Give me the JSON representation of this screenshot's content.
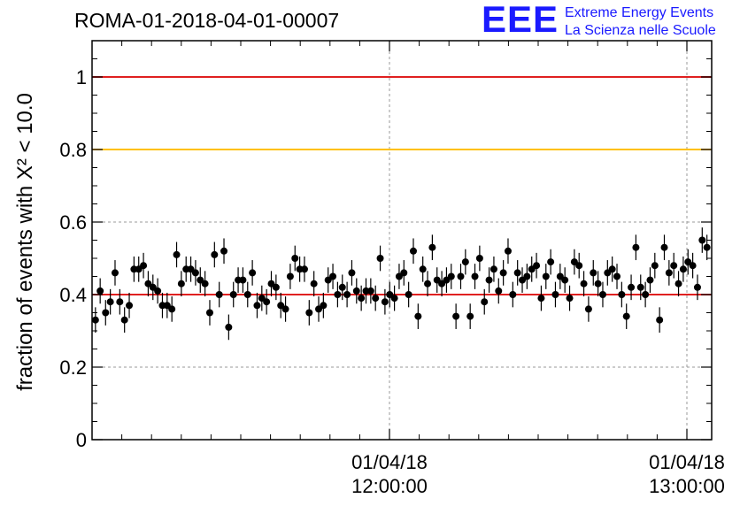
{
  "header": {
    "title": "ROMA-01-2018-04-01-00007",
    "logo_text": "EEE",
    "logo_line1": "Extreme Energy Events",
    "logo_line2": "La Scienza nelle Scuole",
    "logo_color": "#1a1aff"
  },
  "chart_data": {
    "type": "scatter",
    "title": "ROMA-01-2018-04-01-00007",
    "ylabel": "fraction of events with X² < 10.0",
    "xlabel": "",
    "ylim": [
      0,
      1.1
    ],
    "xlim": [
      "01/04/18 11:00:00",
      "01/04/18 13:05:00"
    ],
    "x_is_time": true,
    "y_ticks": [
      "0",
      "0.2",
      "0.4",
      "0.6",
      "0.8",
      "1"
    ],
    "x_ticks": [
      {
        "date": "01/04/18",
        "time": "12:00:00"
      },
      {
        "date": "01/04/18",
        "time": "13:00:00"
      }
    ],
    "grid": true,
    "reference_lines": [
      {
        "y": 1.0,
        "color": "#e02020"
      },
      {
        "y": 0.8,
        "color": "#ffc000"
      },
      {
        "y": 0.4,
        "color": "#e02020"
      }
    ],
    "series": [
      {
        "marker": "circle",
        "color": "#000000",
        "error": 0.035,
        "points": [
          [
            0.5,
            0.33
          ],
          [
            1.2,
            0.41
          ],
          [
            2.0,
            0.35
          ],
          [
            2.7,
            0.38
          ],
          [
            3.4,
            0.46
          ],
          [
            4.1,
            0.38
          ],
          [
            4.8,
            0.33
          ],
          [
            5.5,
            0.37
          ],
          [
            6.2,
            0.47
          ],
          [
            6.9,
            0.47
          ],
          [
            7.6,
            0.48
          ],
          [
            8.3,
            0.43
          ],
          [
            9.0,
            0.42
          ],
          [
            9.7,
            0.41
          ],
          [
            10.4,
            0.37
          ],
          [
            11.1,
            0.37
          ],
          [
            11.8,
            0.36
          ],
          [
            12.5,
            0.51
          ],
          [
            13.2,
            0.43
          ],
          [
            13.9,
            0.47
          ],
          [
            14.6,
            0.47
          ],
          [
            15.3,
            0.46
          ],
          [
            16.0,
            0.44
          ],
          [
            16.7,
            0.43
          ],
          [
            17.4,
            0.35
          ],
          [
            18.1,
            0.51
          ],
          [
            18.8,
            0.4
          ],
          [
            19.5,
            0.52
          ],
          [
            20.2,
            0.31
          ],
          [
            20.9,
            0.4
          ],
          [
            21.6,
            0.44
          ],
          [
            22.3,
            0.44
          ],
          [
            23.0,
            0.4
          ],
          [
            23.7,
            0.46
          ],
          [
            24.4,
            0.37
          ],
          [
            25.1,
            0.39
          ],
          [
            25.8,
            0.38
          ],
          [
            26.5,
            0.43
          ],
          [
            27.2,
            0.42
          ],
          [
            27.9,
            0.37
          ],
          [
            28.6,
            0.36
          ],
          [
            29.3,
            0.45
          ],
          [
            30.0,
            0.5
          ],
          [
            30.7,
            0.47
          ],
          [
            31.4,
            0.47
          ],
          [
            32.1,
            0.35
          ],
          [
            32.8,
            0.43
          ],
          [
            33.5,
            0.36
          ],
          [
            34.2,
            0.37
          ],
          [
            34.9,
            0.44
          ],
          [
            35.6,
            0.45
          ],
          [
            36.3,
            0.4
          ],
          [
            37.0,
            0.42
          ],
          [
            37.7,
            0.4
          ],
          [
            38.4,
            0.46
          ],
          [
            39.1,
            0.41
          ],
          [
            39.8,
            0.39
          ],
          [
            40.5,
            0.41
          ],
          [
            41.2,
            0.41
          ],
          [
            41.9,
            0.39
          ],
          [
            42.6,
            0.5
          ],
          [
            43.3,
            0.38
          ],
          [
            44.0,
            0.4
          ],
          [
            44.7,
            0.39
          ],
          [
            45.4,
            0.45
          ],
          [
            46.1,
            0.46
          ],
          [
            46.8,
            0.4
          ],
          [
            47.5,
            0.52
          ],
          [
            48.2,
            0.34
          ],
          [
            48.9,
            0.47
          ],
          [
            49.6,
            0.43
          ],
          [
            50.3,
            0.53
          ],
          [
            51.0,
            0.44
          ],
          [
            51.7,
            0.43
          ],
          [
            52.4,
            0.44
          ],
          [
            53.1,
            0.45
          ],
          [
            53.8,
            0.34
          ],
          [
            54.5,
            0.45
          ],
          [
            55.2,
            0.49
          ],
          [
            55.9,
            0.34
          ],
          [
            56.6,
            0.45
          ],
          [
            57.3,
            0.5
          ],
          [
            58.0,
            0.38
          ],
          [
            58.7,
            0.44
          ],
          [
            59.4,
            0.47
          ],
          [
            60.1,
            0.41
          ],
          [
            60.8,
            0.46
          ],
          [
            61.5,
            0.52
          ],
          [
            62.2,
            0.4
          ],
          [
            62.9,
            0.46
          ],
          [
            63.6,
            0.44
          ],
          [
            64.3,
            0.45
          ],
          [
            65.0,
            0.47
          ],
          [
            65.7,
            0.48
          ],
          [
            66.4,
            0.39
          ],
          [
            67.1,
            0.45
          ],
          [
            67.8,
            0.49
          ],
          [
            68.5,
            0.4
          ],
          [
            69.2,
            0.45
          ],
          [
            69.9,
            0.44
          ],
          [
            70.6,
            0.39
          ],
          [
            71.3,
            0.49
          ],
          [
            72.0,
            0.48
          ],
          [
            72.7,
            0.43
          ],
          [
            73.4,
            0.36
          ],
          [
            74.1,
            0.46
          ],
          [
            74.8,
            0.43
          ],
          [
            75.5,
            0.4
          ],
          [
            76.2,
            0.46
          ],
          [
            76.9,
            0.47
          ],
          [
            77.6,
            0.45
          ],
          [
            78.3,
            0.4
          ],
          [
            79.0,
            0.34
          ],
          [
            79.7,
            0.42
          ],
          [
            80.4,
            0.53
          ],
          [
            81.1,
            0.42
          ],
          [
            81.8,
            0.4
          ],
          [
            82.5,
            0.44
          ],
          [
            83.2,
            0.48
          ],
          [
            83.9,
            0.33
          ],
          [
            84.6,
            0.53
          ],
          [
            85.3,
            0.46
          ],
          [
            86.0,
            0.48
          ],
          [
            86.7,
            0.43
          ],
          [
            87.4,
            0.47
          ],
          [
            88.1,
            0.49
          ],
          [
            88.8,
            0.48
          ],
          [
            89.5,
            0.42
          ],
          [
            90.2,
            0.55
          ],
          [
            90.9,
            0.53
          ]
        ]
      }
    ]
  }
}
